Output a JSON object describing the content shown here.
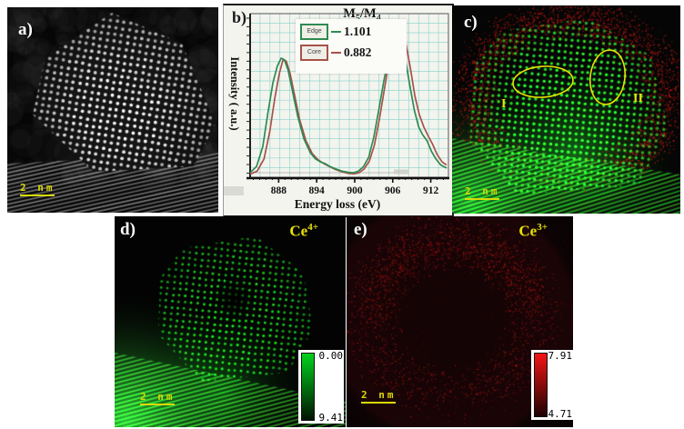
{
  "panels": {
    "a": {
      "label": "a)",
      "scalebar_label": "2 nm"
    },
    "b": {
      "label": "b)"
    },
    "c": {
      "label": "c)",
      "scalebar_label": "2 nm",
      "region_labels": [
        "I",
        "II"
      ]
    },
    "d": {
      "label": "d)",
      "ion": {
        "base": "Ce",
        "sup": "4+"
      },
      "scalebar_label": "2 nm",
      "colorbar": {
        "top_value": "0.00",
        "bottom_value": "9.41",
        "top_color": "#00d31e",
        "bottom_color": "#021202"
      }
    },
    "e": {
      "label": "e)",
      "ion": {
        "base": "Ce",
        "sup": "3+"
      },
      "scalebar_label": "2 nm",
      "colorbar": {
        "top_value": "7.91",
        "bottom_value": "4.71",
        "top_color": "#f51414",
        "bottom_color": "#1c0202"
      }
    }
  },
  "chart_data": {
    "type": "line",
    "title_parts": {
      "m1": "M",
      "sub1": "5",
      "m2": "/M",
      "sub2": "4"
    },
    "xlabel": "Energy loss (eV)",
    "ylabel": "Intensity ( a.u.)",
    "xticks": [
      888,
      894,
      900,
      906,
      912
    ],
    "xlim": [
      883.5,
      914.5
    ],
    "ylim": [
      0,
      1.05
    ],
    "grid": true,
    "grid_color": "#86d2cc",
    "legend": [
      {
        "name": "Edge",
        "ratio": "1.101"
      },
      {
        "name": "Core",
        "ratio": "0.882"
      }
    ],
    "series": [
      {
        "name": "Edge",
        "color": "#2f8a52",
        "x": [
          883.5,
          884.5,
          885.5,
          886.3,
          887.1,
          887.8,
          888.4,
          888.9,
          889.5,
          890.2,
          891,
          892,
          893,
          893.8,
          894.6,
          895.3,
          896.1,
          897,
          898,
          899,
          899.8,
          900.6,
          901.4,
          902.2,
          903,
          903.8,
          904.6,
          905.4,
          906,
          906.5,
          906.9,
          907.4,
          908,
          908.7,
          909.4,
          910.1,
          910.7,
          911.4,
          912.1,
          912.8,
          913.6,
          914.5
        ],
        "y": [
          0.03,
          0.07,
          0.2,
          0.42,
          0.62,
          0.73,
          0.78,
          0.77,
          0.7,
          0.56,
          0.4,
          0.25,
          0.16,
          0.12,
          0.1,
          0.09,
          0.07,
          0.055,
          0.04,
          0.032,
          0.03,
          0.04,
          0.07,
          0.13,
          0.26,
          0.44,
          0.63,
          0.8,
          0.9,
          0.94,
          0.93,
          0.88,
          0.77,
          0.6,
          0.44,
          0.33,
          0.28,
          0.24,
          0.17,
          0.12,
          0.08,
          0.06
        ]
      },
      {
        "name": "Core",
        "color": "#a85148",
        "x": [
          883.5,
          884.6,
          885.7,
          886.6,
          887.4,
          888.1,
          888.7,
          889.2,
          889.8,
          890.5,
          891.3,
          892.3,
          893.3,
          894.2,
          895.1,
          896,
          897,
          898,
          899,
          899.9,
          900.7,
          901.5,
          902.3,
          903.1,
          903.9,
          904.7,
          905.5,
          906.1,
          906.6,
          907,
          907.5,
          908.1,
          908.8,
          909.5,
          910.2,
          910.9,
          911.6,
          912.3,
          913,
          913.8,
          914.5
        ],
        "y": [
          0.02,
          0.04,
          0.12,
          0.3,
          0.52,
          0.68,
          0.77,
          0.76,
          0.68,
          0.54,
          0.38,
          0.24,
          0.155,
          0.115,
          0.09,
          0.07,
          0.05,
          0.035,
          0.025,
          0.022,
          0.03,
          0.055,
          0.105,
          0.21,
          0.38,
          0.58,
          0.78,
          0.92,
          0.99,
          1.0,
          0.96,
          0.87,
          0.71,
          0.53,
          0.41,
          0.33,
          0.27,
          0.215,
          0.15,
          0.1,
          0.08
        ]
      }
    ]
  }
}
